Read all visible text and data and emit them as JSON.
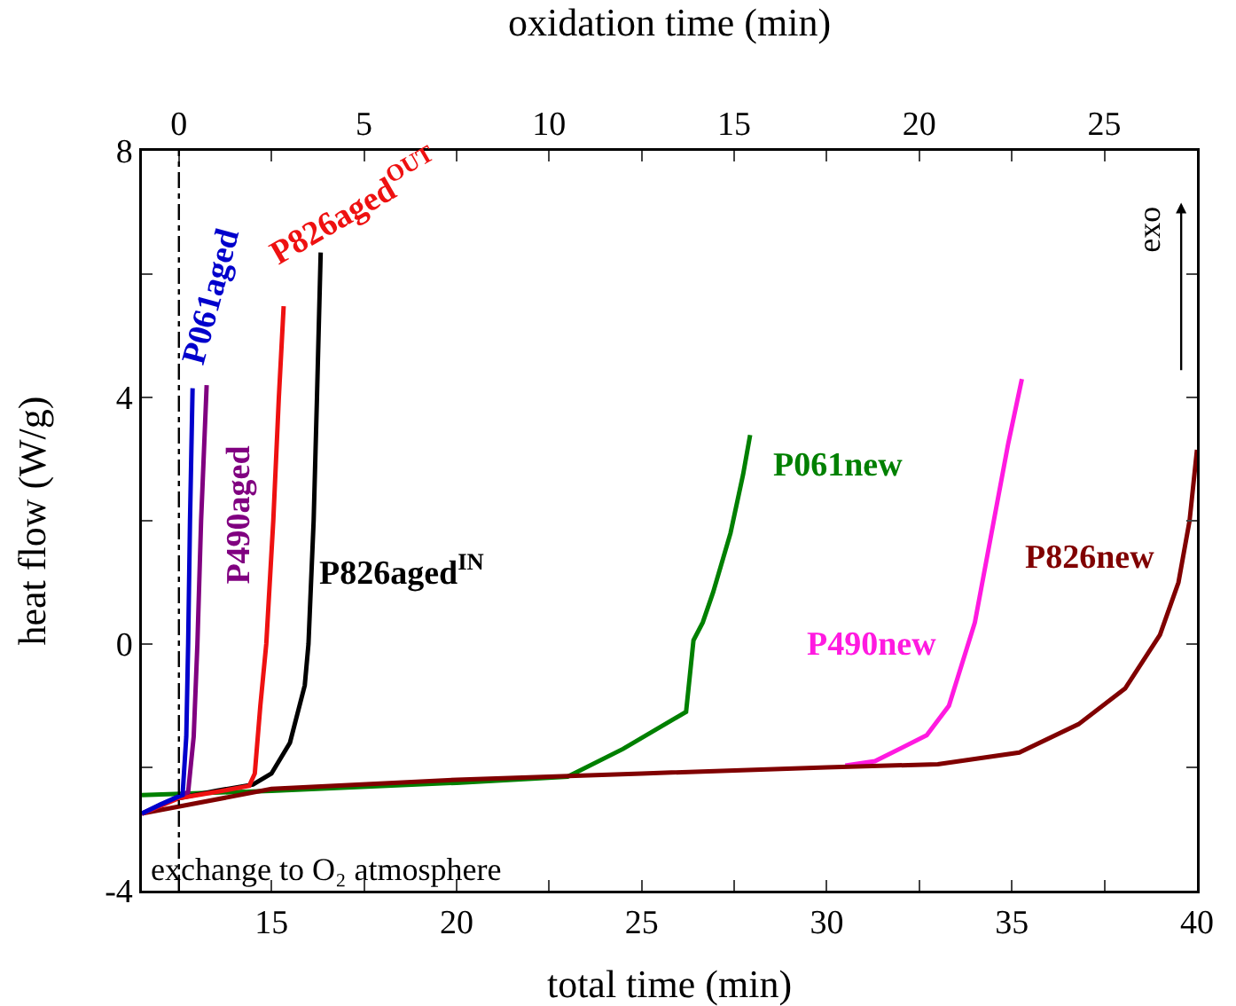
{
  "chart_data": {
    "type": "line",
    "xlabel": "total time (min)",
    "ylabel": "heat flow (W/g)",
    "x2label": "oxidation time (min)",
    "xlim": [
      11.5,
      40
    ],
    "xticks": [
      {
        "value": 12.5,
        "label": null
      },
      15,
      {
        "value": 17.5,
        "label": null
      },
      20,
      {
        "value": 22.5,
        "label": null
      },
      25,
      {
        "value": 27.5,
        "label": null
      },
      30,
      {
        "value": 32.5,
        "label": null
      },
      35,
      {
        "value": 37.5,
        "label": null
      },
      40
    ],
    "x2lim": [
      -1,
      27.5
    ],
    "x2ticks": [
      0,
      {
        "value": 2.5,
        "label": null
      },
      5,
      {
        "value": 7.5,
        "label": null
      },
      10,
      {
        "value": 12.5,
        "label": null
      },
      15,
      {
        "value": 17.5,
        "label": null
      },
      20,
      {
        "value": 22.5,
        "label": null
      },
      25
    ],
    "ylim": [
      -4,
      8
    ],
    "yticks": [
      -4,
      {
        "value": -2,
        "label": null
      },
      0,
      {
        "value": 2,
        "label": null
      },
      4,
      {
        "value": 6,
        "label": null
      },
      8
    ],
    "grid": false,
    "legend": false,
    "marker": "none",
    "line_style": "solid",
    "series": [
      {
        "name": "P061new",
        "color": "#008000",
        "x": [
          11.5,
          15,
          20,
          23,
          24.5,
          26.2,
          26.4,
          26.65,
          26.93,
          27.4,
          27.74,
          27.93
        ],
        "values": [
          -2.45,
          -2.38,
          -2.25,
          -2.15,
          -1.7,
          -1.1,
          0.06,
          0.35,
          0.84,
          1.8,
          2.75,
          3.39
        ]
      },
      {
        "name": "P490new",
        "color": "#ff1ae0",
        "x": [
          30.5,
          31.3,
          32.7,
          33.3,
          34.0,
          34.45,
          34.9,
          35.27
        ],
        "values": [
          -1.97,
          -1.9,
          -1.48,
          -1.0,
          0.35,
          1.8,
          3.25,
          4.3
        ]
      },
      {
        "name": "P826new",
        "color": "#800000",
        "x": [
          11.5,
          15,
          20,
          25,
          30,
          33,
          35.2,
          36.8,
          38.06,
          39.0,
          39.5,
          39.8,
          40.0
        ],
        "values": [
          -2.75,
          -2.35,
          -2.2,
          -2.1,
          -2.0,
          -1.95,
          -1.76,
          -1.3,
          -0.72,
          0.15,
          1.0,
          2.0,
          3.15
        ]
      },
      {
        "name": "P826aged$^{IN}$",
        "color": "#000000",
        "x": [
          12.5,
          13.5,
          14.5,
          15.0,
          15.5,
          15.9,
          16.0,
          16.14,
          16.23,
          16.33
        ],
        "values": [
          -2.5,
          -2.38,
          -2.28,
          -2.1,
          -1.6,
          -0.67,
          0,
          2,
          4,
          6.35
        ]
      },
      {
        "name": "P826aged$^{OUT}$",
        "color": "#ee1111",
        "x": [
          11.5,
          12.5,
          13.5,
          14.4,
          14.55,
          14.7,
          14.86,
          15.05,
          15.2,
          15.33
        ],
        "values": [
          -2.75,
          -2.5,
          -2.4,
          -2.3,
          -2.1,
          -1,
          0,
          2,
          4,
          5.48
        ]
      },
      {
        "name": "P490aged",
        "color": "#800080",
        "x": [
          11.5,
          12.5,
          12.75,
          12.9,
          13.0,
          13.1,
          13.25
        ],
        "values": [
          -2.75,
          -2.47,
          -2.4,
          -1.5,
          0,
          2,
          4.2
        ]
      },
      {
        "name": "P061aged",
        "color": "#0000cc",
        "x": [
          11.5,
          12.0,
          12.5,
          12.6,
          12.7,
          12.75,
          12.8,
          12.87
        ],
        "values": [
          -2.75,
          -2.6,
          -2.47,
          -2.45,
          -1.5,
          0,
          2,
          4.15
        ]
      }
    ],
    "ref_lines": [
      {
        "axis": "x",
        "value": 12.5,
        "color": "#000000",
        "line_style": "dashdot"
      }
    ],
    "annotations": [
      "exchange to O₂ atmosphere",
      "exo"
    ]
  }
}
